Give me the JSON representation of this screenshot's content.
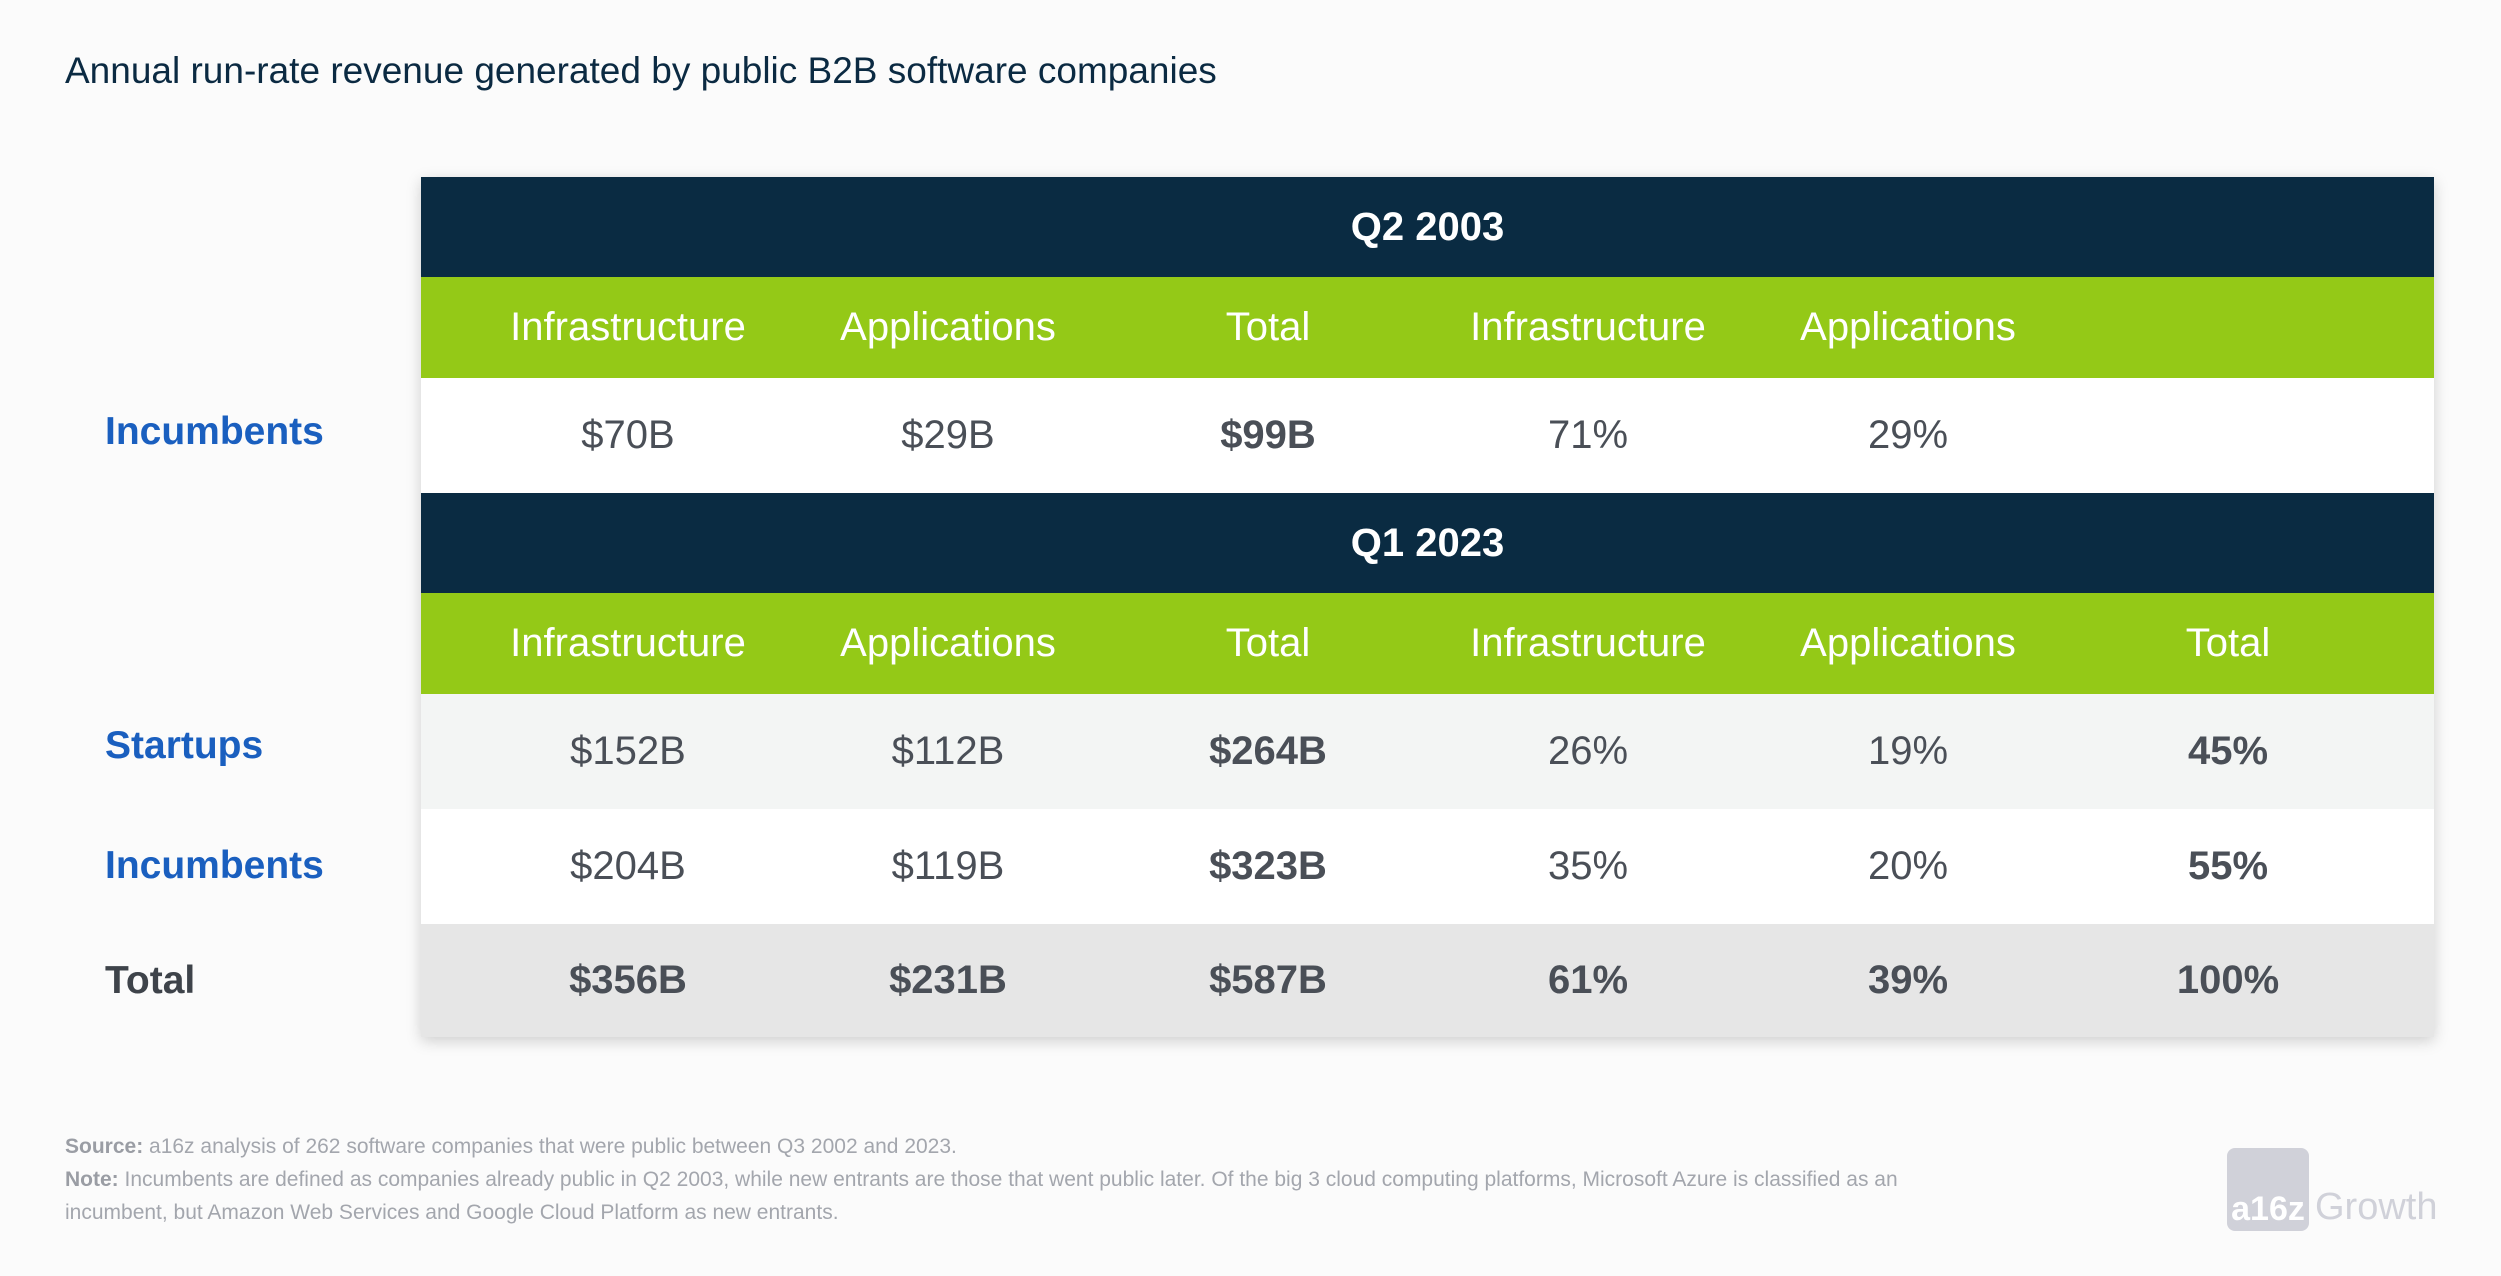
{
  "title": "Annual run-rate revenue generated by public B2B software companies",
  "sections": [
    {
      "period": "Q2 2003",
      "headers": [
        "Infrastructure",
        "Applications",
        "Total",
        "Infrastructure",
        "Applications",
        ""
      ],
      "rows": [
        {
          "label": "Incumbents",
          "cells": [
            "$70B",
            "$29B",
            "$99B",
            "71%",
            "29%",
            ""
          ]
        }
      ]
    },
    {
      "period": "Q1 2023",
      "headers": [
        "Infrastructure",
        "Applications",
        "Total",
        "Infrastructure",
        "Applications",
        "Total"
      ],
      "rows": [
        {
          "label": "Startups",
          "cells": [
            "$152B",
            "$112B",
            "$264B",
            "26%",
            "19%",
            "45%"
          ]
        },
        {
          "label": "Incumbents",
          "cells": [
            "$204B",
            "$119B",
            "$323B",
            "35%",
            "20%",
            "55%"
          ]
        },
        {
          "label": "Total",
          "cells": [
            "$356B",
            "$231B",
            "$587B",
            "61%",
            "39%",
            "100%"
          ]
        }
      ]
    }
  ],
  "footnotes": {
    "source_label": "Source:",
    "source": " a16z analysis of 262 software companies that were public between Q3 2002 and 2023.",
    "note_label": "Note:",
    "note1": " Incumbents are defined as companies already public in Q2 2003, while new entrants are those that went public later. Of the big 3 cloud computing platforms, Microsoft Azure is classified as an",
    "note2": "incumbent, but Amazon Web Services and Google Cloud Platform as new entrants."
  },
  "logo": {
    "mark": "a16z",
    "text": "Growth"
  },
  "colors": {
    "navy": "#0a2b42",
    "green": "#94c917",
    "label_blue": "#1a5fbf"
  }
}
